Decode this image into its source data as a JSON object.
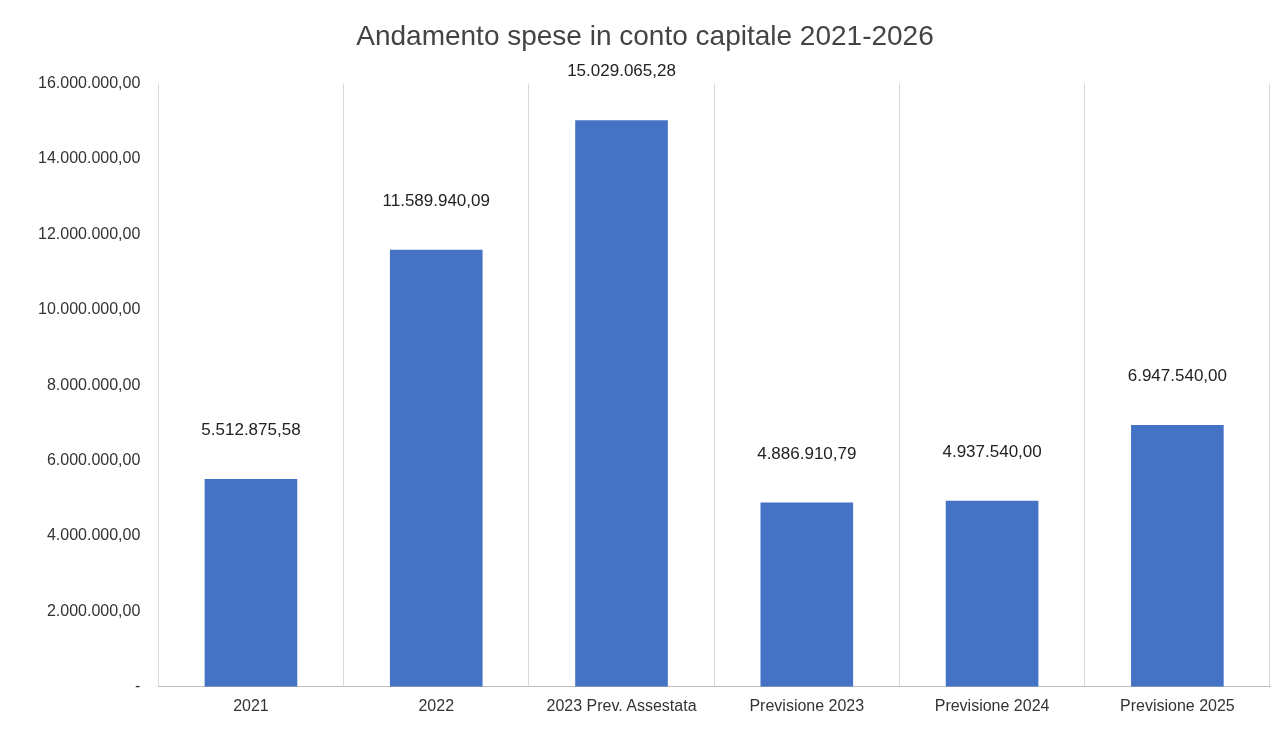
{
  "chart_data": {
    "type": "bar",
    "title": "Andamento spese in conto capitale 2021-2026",
    "categories": [
      "2021",
      "2022",
      "2023 Prev. Assestata",
      "Previsione 2023",
      "Previsione 2024",
      "Previsione 2025"
    ],
    "values": [
      5512875.58,
      11589940.09,
      15029065.28,
      4886910.79,
      4937540.0,
      6947540.0
    ],
    "color": "#4472c4",
    "value_labels": [
      "5.512.875,58",
      "11.589.940,09",
      "15.029.065,28",
      "4.886.910,79",
      "4.937.540,00",
      "6.947.540,00"
    ],
    "ylim": [
      0,
      16000000
    ],
    "yticks": [
      {
        "value": 0,
        "label": "-"
      },
      {
        "value": 2000000,
        "label": "2.000.000,00"
      },
      {
        "value": 4000000,
        "label": "4.000.000,00"
      },
      {
        "value": 6000000,
        "label": "6.000.000,00"
      },
      {
        "value": 8000000,
        "label": "8.000.000,00"
      },
      {
        "value": 10000000,
        "label": "10.000.000,00"
      },
      {
        "value": 12000000,
        "label": "12.000.000,00"
      },
      {
        "value": 14000000,
        "label": "14.000.000,00"
      },
      {
        "value": 16000000,
        "label": "16.000.000,00"
      }
    ],
    "grid": "x",
    "legend": false
  }
}
